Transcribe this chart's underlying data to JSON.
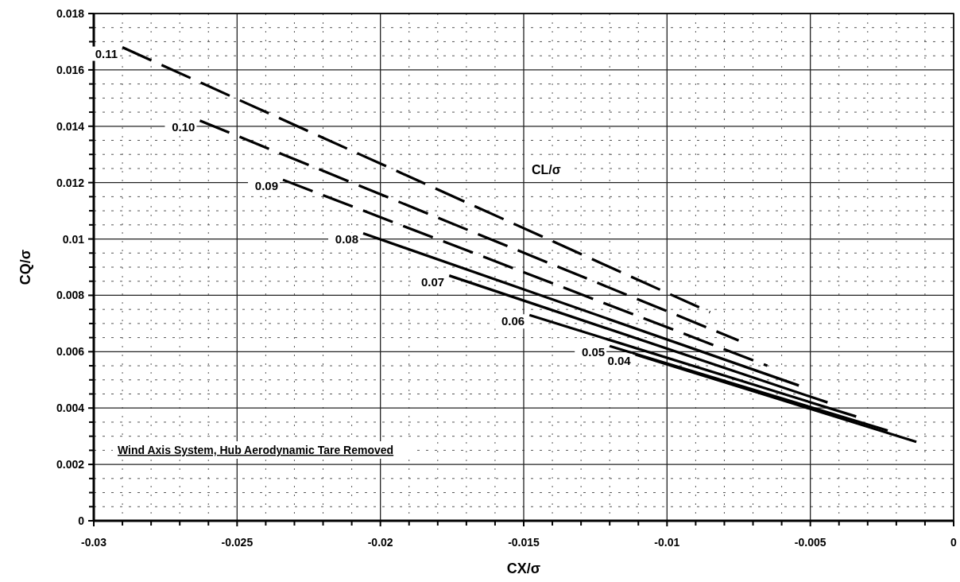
{
  "chart_data": {
    "type": "line",
    "xlabel": "CX/σ",
    "ylabel": "CQ/σ",
    "legend_title": "CL/σ",
    "annotations": [
      "Wind Axis System, Hub Aerodynamic Tare Removed"
    ],
    "xlim": [
      -0.03,
      0
    ],
    "xticks": [
      -0.03,
      -0.025,
      -0.02,
      -0.015,
      -0.01,
      -0.005,
      0
    ],
    "ylim": [
      0,
      0.018
    ],
    "yticks": [
      0,
      0.002,
      0.004,
      0.006,
      0.008,
      0.01,
      0.012,
      0.014,
      0.016,
      0.018
    ],
    "grid": true,
    "marker": "none",
    "series": [
      {
        "name": "0.11",
        "color": "#000000",
        "line_style": "dashed",
        "x": [
          -0.029,
          -0.0085
        ],
        "values": [
          0.0168,
          0.0074
        ]
      },
      {
        "name": "0.10",
        "color": "#000000",
        "line_style": "dashed",
        "x": [
          -0.0263,
          -0.0075
        ],
        "values": [
          0.0142,
          0.0064
        ]
      },
      {
        "name": "0.09",
        "color": "#000000",
        "line_style": "dashed",
        "x": [
          -0.0234,
          -0.0065
        ],
        "values": [
          0.0121,
          0.0055
        ]
      },
      {
        "name": "0.08",
        "color": "#000000",
        "line_style": "solid",
        "x": [
          -0.0206,
          -0.0054
        ],
        "values": [
          0.0102,
          0.0048
        ]
      },
      {
        "name": "0.07",
        "color": "#000000",
        "line_style": "solid",
        "x": [
          -0.0176,
          -0.0044
        ],
        "values": [
          0.0087,
          0.0042
        ]
      },
      {
        "name": "0.06",
        "color": "#000000",
        "line_style": "solid",
        "x": [
          -0.0148,
          -0.0034
        ],
        "values": [
          0.0073,
          0.0037
        ]
      },
      {
        "name": "0.05",
        "color": "#000000",
        "line_style": "solid",
        "x": [
          -0.012,
          -0.0023
        ],
        "values": [
          0.0062,
          0.0032
        ]
      },
      {
        "name": "0.04",
        "color": "#000000",
        "line_style": "solid",
        "x": [
          -0.0111,
          -0.0013
        ],
        "values": [
          0.0059,
          0.0028
        ]
      }
    ]
  }
}
